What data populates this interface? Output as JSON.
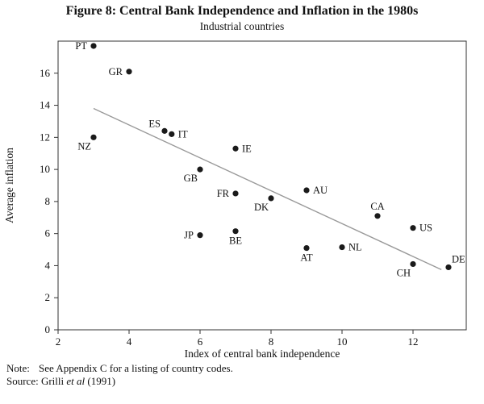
{
  "figure": {
    "title": "Figure 8: Central Bank Independence and Inflation in the 1980s",
    "subtitle": "Industrial countries"
  },
  "chart_data": {
    "type": "scatter",
    "title": "Figure 8: Central Bank Independence and Inflation in the 1980s",
    "subtitle": "Industrial countries",
    "xlabel": "Index of central bank independence",
    "ylabel": "Average inflation",
    "xlim": [
      2,
      13.5
    ],
    "ylim": [
      0,
      18
    ],
    "xticks": [
      2,
      4,
      6,
      8,
      10,
      12
    ],
    "yticks": [
      0,
      2,
      4,
      6,
      8,
      10,
      12,
      14,
      16
    ],
    "grid": false,
    "point_color": "#1a1a1a",
    "trend_color": "#999999",
    "frame_color": "#333333",
    "points": [
      {
        "label": "PT",
        "x": 3,
        "y": 17.7,
        "labelPos": "left"
      },
      {
        "label": "GR",
        "x": 4,
        "y": 16.1,
        "labelPos": "left"
      },
      {
        "label": "NZ",
        "x": 3,
        "y": 12.0,
        "labelPos": "below-left"
      },
      {
        "label": "ES",
        "x": 5,
        "y": 12.4,
        "labelPos": "above-left"
      },
      {
        "label": "IT",
        "x": 5.2,
        "y": 12.2,
        "labelPos": "right"
      },
      {
        "label": "IE",
        "x": 7,
        "y": 11.3,
        "labelPos": "right"
      },
      {
        "label": "GB",
        "x": 6,
        "y": 10.0,
        "labelPos": "below-left"
      },
      {
        "label": "FR",
        "x": 7,
        "y": 8.5,
        "labelPos": "left"
      },
      {
        "label": "DK",
        "x": 8,
        "y": 8.2,
        "labelPos": "below-left"
      },
      {
        "label": "AU",
        "x": 9,
        "y": 8.7,
        "labelPos": "right"
      },
      {
        "label": "JP",
        "x": 6,
        "y": 5.9,
        "labelPos": "left"
      },
      {
        "label": "BE",
        "x": 7,
        "y": 6.15,
        "labelPos": "below"
      },
      {
        "label": "AT",
        "x": 9,
        "y": 5.1,
        "labelPos": "below"
      },
      {
        "label": "NL",
        "x": 10,
        "y": 5.15,
        "labelPos": "right"
      },
      {
        "label": "CA",
        "x": 11,
        "y": 7.1,
        "labelPos": "above"
      },
      {
        "label": "US",
        "x": 12,
        "y": 6.35,
        "labelPos": "right"
      },
      {
        "label": "CH",
        "x": 12,
        "y": 4.1,
        "labelPos": "below-left"
      },
      {
        "label": "DE",
        "x": 13,
        "y": 3.9,
        "labelPos": "above-right"
      }
    ],
    "trendline": {
      "x1": 3,
      "y1": 13.8,
      "x2": 12.8,
      "y2": 3.75
    }
  },
  "notes": {
    "note_label": "Note:",
    "note_text": "See Appendix C for a listing of country codes.",
    "source_prefix": "Source: Grilli ",
    "source_italic": "et al",
    "source_suffix": " (1991)"
  }
}
